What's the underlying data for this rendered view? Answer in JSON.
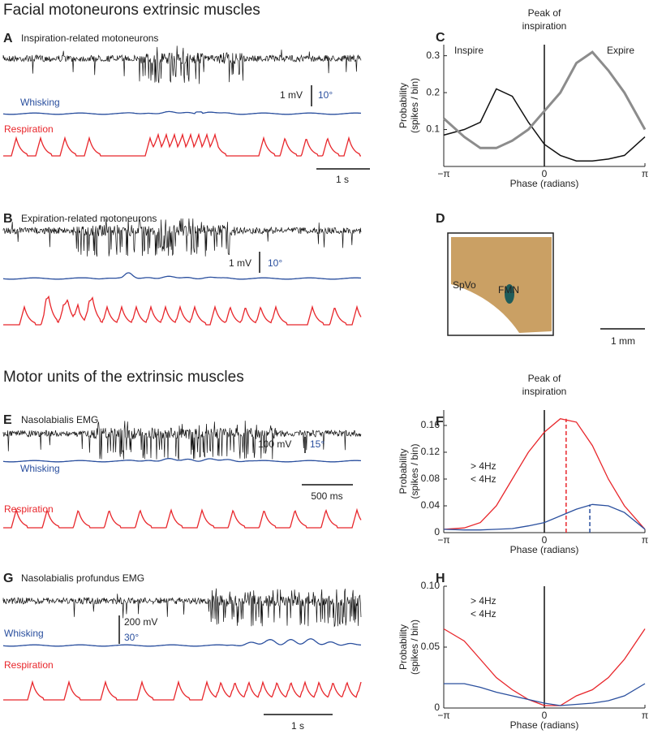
{
  "sections": [
    {
      "title": "Facial motoneurons extrinsic muscles"
    },
    {
      "title": "Motor units of the extrinsic muscles"
    }
  ],
  "trace_panels": [
    {
      "letter": "A",
      "title": "Inspiration-related motoneurons",
      "title_color": "#222",
      "whisking": "Whisking",
      "respiration": "Respiration",
      "scale_v": "1 mV",
      "scale_angle": "10°",
      "scale_t": "1 s"
    },
    {
      "letter": "B",
      "title": "Expiration-related motoneurons",
      "title_color": "#999",
      "scale_v": "1 mV",
      "scale_angle": "10°"
    },
    {
      "letter": "E",
      "title": "Nasolabialis EMG",
      "title_color": "#222",
      "whisking": "Whisking",
      "respiration": "Respiration",
      "scale_v": "100 mV",
      "scale_angle": "15°",
      "scale_t": "500 ms"
    },
    {
      "letter": "G",
      "title": "Nasolabialis profundus EMG",
      "title_color": "#222",
      "whisking": "Whisking",
      "respiration": "Respiration",
      "scale_v": "200 mV",
      "scale_angle": "30°",
      "scale_t": "1 s"
    }
  ],
  "histology": {
    "letter": "D",
    "labels": [
      "SpVo",
      "FMN"
    ],
    "scale": "1 mm"
  },
  "chart_data": [
    {
      "type": "line",
      "panel": "C",
      "xlabel": "Phase (radians)",
      "ylabel": [
        "Probability",
        "(spikes / bin)"
      ],
      "vline_label": [
        "Peak of",
        "inspiration"
      ],
      "annotations": [
        "Inspire",
        "Expire"
      ],
      "x": [
        -3.1416,
        -2.5,
        -2,
        -1.5,
        -1,
        -0.5,
        0,
        0.5,
        1,
        1.5,
        2,
        2.5,
        3.1416
      ],
      "xlim": [
        -3.1416,
        3.1416
      ],
      "xticks": [
        {
          "value": -3.1416,
          "label": "−π"
        },
        0,
        {
          "value": 3.1416,
          "label": "π"
        }
      ],
      "ylim": [
        0,
        0.33
      ],
      "yticks": [
        0.1,
        0.2,
        0.3
      ],
      "series": [
        {
          "color": "#111",
          "values": [
            0.085,
            0.1,
            0.12,
            0.21,
            0.19,
            0.12,
            0.06,
            0.03,
            0.015,
            0.015,
            0.02,
            0.03,
            0.08
          ]
        },
        {
          "color": "#8c8c8c",
          "values": [
            0.13,
            0.08,
            0.05,
            0.05,
            0.07,
            0.1,
            0.15,
            0.2,
            0.28,
            0.31,
            0.26,
            0.2,
            0.1
          ]
        }
      ]
    },
    {
      "type": "line",
      "panel": "F",
      "xlabel": "Phase (radians)",
      "ylabel": [
        "Probability",
        "(spikes / bin)"
      ],
      "vline_label": [
        "Peak of",
        "inspiration"
      ],
      "x": [
        -3.1416,
        -2.5,
        -2,
        -1.5,
        -1,
        -0.5,
        0,
        0.5,
        1,
        1.5,
        2,
        2.5,
        3.1416
      ],
      "xlim": [
        -3.1416,
        3.1416
      ],
      "xticks": [
        {
          "value": -3.1416,
          "label": "−π"
        },
        0,
        {
          "value": 3.1416,
          "label": "π"
        }
      ],
      "ylim": [
        0,
        0.183
      ],
      "yticks": [
        0,
        0.04,
        0.08,
        0.12,
        0.16
      ],
      "series": [
        {
          "name": "> 4Hz",
          "color": "#e8262b",
          "peak_x": 0.68,
          "values": [
            0.005,
            0.007,
            0.015,
            0.04,
            0.08,
            0.12,
            0.15,
            0.17,
            0.165,
            0.13,
            0.08,
            0.04,
            0.005
          ]
        },
        {
          "name": "< 4Hz",
          "color": "#2a4f9e",
          "peak_x": 1.42,
          "values": [
            0.005,
            0.004,
            0.004,
            0.005,
            0.006,
            0.01,
            0.015,
            0.025,
            0.035,
            0.042,
            0.04,
            0.03,
            0.005
          ]
        }
      ]
    },
    {
      "type": "line",
      "panel": "H",
      "xlabel": "Phase (radians)",
      "ylabel": [
        "Probability",
        "(spikes / bin)"
      ],
      "x": [
        -3.1416,
        -2.5,
        -2,
        -1.5,
        -1,
        -0.5,
        0,
        0.5,
        1,
        1.5,
        2,
        2.5,
        3.1416
      ],
      "xlim": [
        -3.1416,
        3.1416
      ],
      "xticks": [
        {
          "value": -3.1416,
          "label": "−π"
        },
        0,
        {
          "value": 3.1416,
          "label": "π"
        }
      ],
      "ylim": [
        0,
        0.1
      ],
      "yticks": [
        0,
        0.05,
        {
          "value": 0.1,
          "label": "0.10"
        }
      ],
      "series": [
        {
          "name": "> 4Hz",
          "color": "#e8262b",
          "values": [
            0.065,
            0.055,
            0.04,
            0.025,
            0.015,
            0.007,
            0.002,
            0.002,
            0.01,
            0.015,
            0.025,
            0.04,
            0.065
          ]
        },
        {
          "name": "< 4Hz",
          "color": "#2a4f9e",
          "values": [
            0.02,
            0.02,
            0.017,
            0.013,
            0.01,
            0.007,
            0.004,
            0.002,
            0.003,
            0.004,
            0.006,
            0.01,
            0.02
          ]
        }
      ]
    }
  ]
}
